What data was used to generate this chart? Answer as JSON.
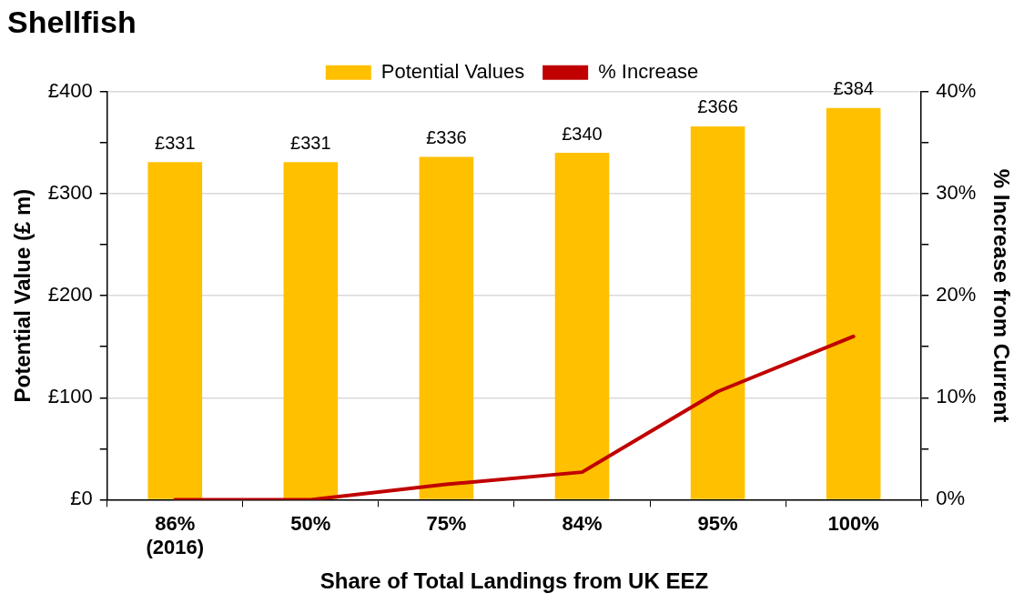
{
  "chart_data": {
    "type": "bar",
    "title": "Shellfish",
    "xlabel": "Share of Total Landings from UK EEZ",
    "ylabel": "Potential Value (£ m)",
    "y2label": "% Increase from Current",
    "categories": [
      "86%\n(2016)",
      "50%",
      "75%",
      "84%",
      "95%",
      "100%"
    ],
    "series": [
      {
        "name": "Potential Values",
        "color": "#ffc000",
        "values": [
          331,
          331,
          336,
          340,
          366,
          384
        ],
        "value_labels": [
          "£331",
          "£331",
          "£336",
          "£340",
          "£366",
          "£384"
        ]
      },
      {
        "name": "% Increase",
        "type": "line",
        "axis": "y2",
        "color": "#c00000",
        "values": [
          0,
          0,
          1.5,
          2.7,
          10.6,
          16.0
        ],
        "marker": "none",
        "line_style": "solid"
      }
    ],
    "ylim": [
      0,
      400
    ],
    "yticks": [
      {
        "value": 0,
        "label": "£0"
      },
      {
        "value": 50,
        "label": null
      },
      {
        "value": 100,
        "label": "£100"
      },
      {
        "value": 150,
        "label": null
      },
      {
        "value": 200,
        "label": "£200"
      },
      {
        "value": 250,
        "label": null
      },
      {
        "value": 300,
        "label": "£300"
      },
      {
        "value": 350,
        "label": null
      },
      {
        "value": 400,
        "label": "£400"
      }
    ],
    "y2lim": [
      0,
      40
    ],
    "y2ticks": [
      {
        "value": 0,
        "label": "0%"
      },
      {
        "value": 5,
        "label": null
      },
      {
        "value": 10,
        "label": "10%"
      },
      {
        "value": 15,
        "label": null
      },
      {
        "value": 20,
        "label": "20%"
      },
      {
        "value": 25,
        "label": null
      },
      {
        "value": 30,
        "label": "30%"
      },
      {
        "value": 35,
        "label": null
      },
      {
        "value": 40,
        "label": "40%"
      }
    ],
    "grid": "y",
    "legend": "top"
  }
}
